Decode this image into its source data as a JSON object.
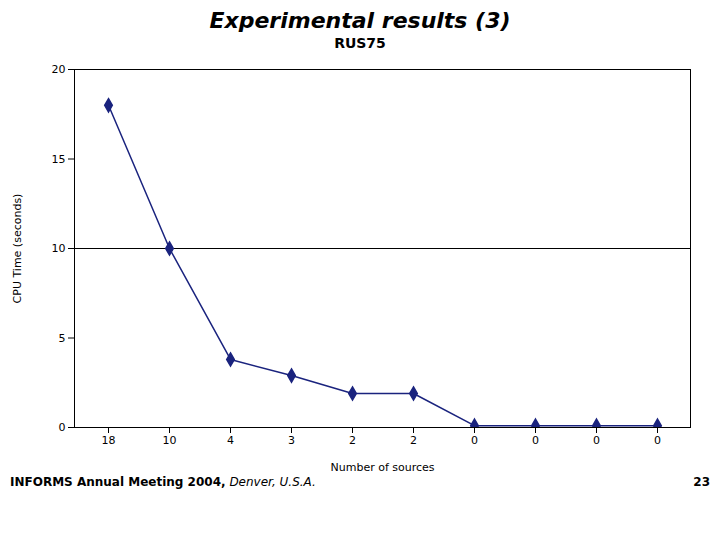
{
  "chart_data": {
    "type": "line",
    "title": "Experimental results (3)",
    "subtitle": "RUS75",
    "annotations": [
      "INFORMS Annual Meeting 2004,",
      " Denver, U.S.A.",
      "23"
    ],
    "categories": [
      "18",
      "10",
      "4",
      "3",
      "2",
      "2",
      "0",
      "0",
      "0",
      "0"
    ],
    "values": [
      18.0,
      10.0,
      3.8,
      2.9,
      1.9,
      1.9,
      0.1,
      0.1,
      0.1,
      0.1
    ],
    "xlabel": "Number of sources",
    "ylabel": "CPU Time (seconds)",
    "ylim": [
      0,
      20
    ],
    "yticks": [
      0,
      5,
      10,
      15,
      20
    ],
    "color": "#1a237e",
    "marker": "diamond",
    "hline": {
      "value": 10,
      "color": "#000000"
    },
    "grid": false
  }
}
